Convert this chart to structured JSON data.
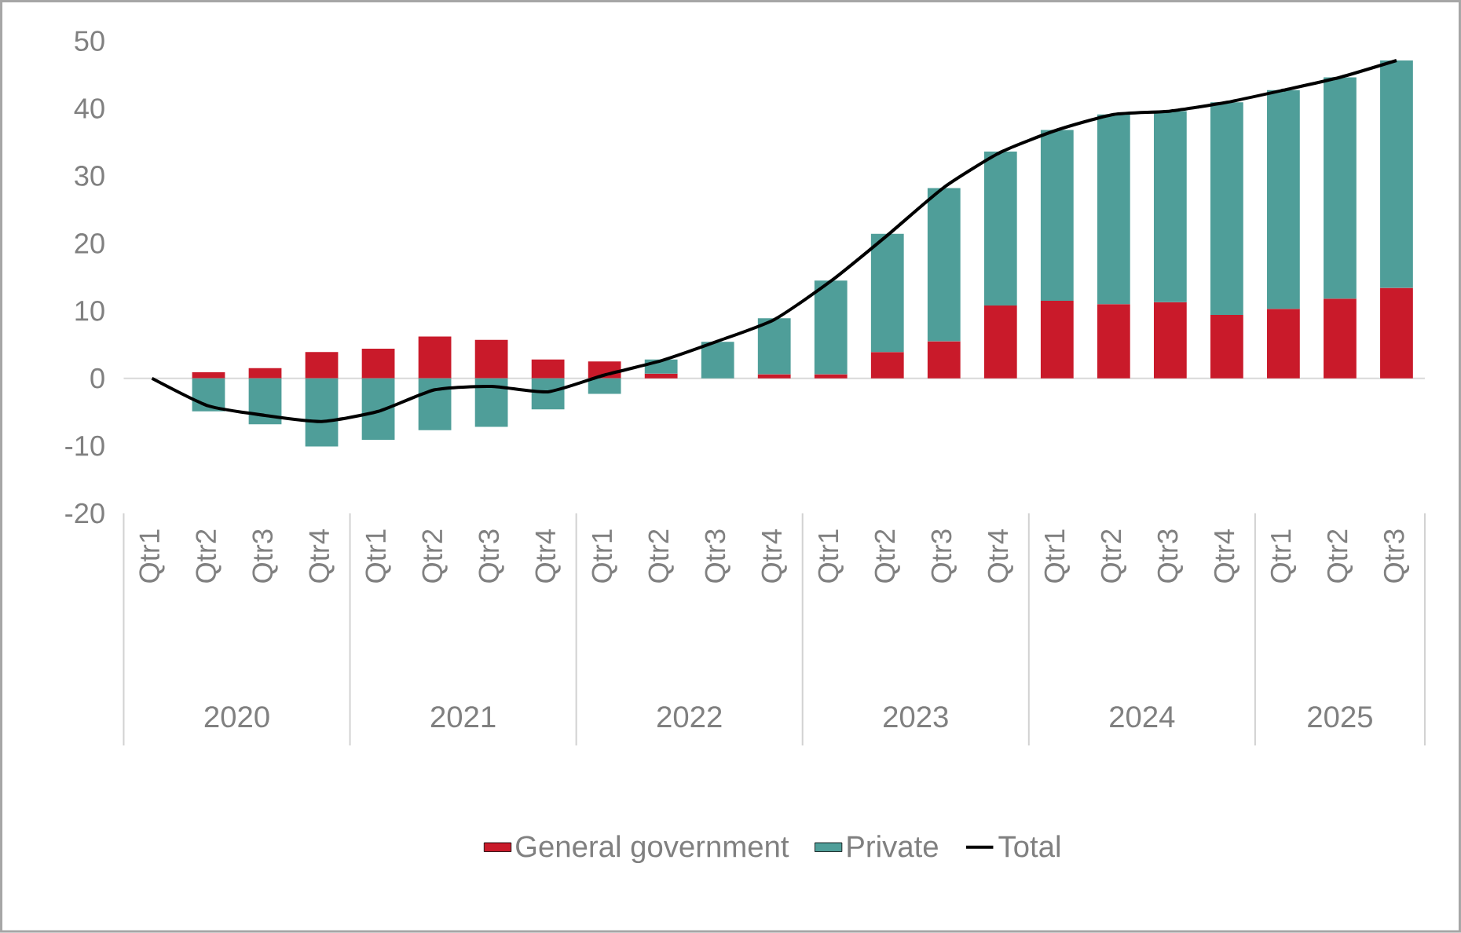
{
  "chart_data": {
    "type": "bar",
    "stacked": true,
    "legend": "bottom",
    "categories": [
      "Qtr1",
      "Qtr2",
      "Qtr3",
      "Qtr4",
      "Qtr1",
      "Qtr2",
      "Qtr3",
      "Qtr4",
      "Qtr1",
      "Qtr2",
      "Qtr3",
      "Qtr4",
      "Qtr1",
      "Qtr2",
      "Qtr3",
      "Qtr4",
      "Qtr1",
      "Qtr2",
      "Qtr3",
      "Qtr4",
      "Qtr1",
      "Qtr2",
      "Qtr3"
    ],
    "ylim": [
      -20,
      50
    ],
    "yticks": [
      -20,
      -10,
      0,
      10,
      20,
      30,
      40,
      50
    ],
    "annotations": [
      "2020",
      "2021",
      "2022",
      "2023",
      "2024",
      "2025"
    ],
    "series": [
      {
        "name": "General government",
        "color": "#c91a2a",
        "values": [
          0,
          0.9,
          1.5,
          3.9,
          4.4,
          6.2,
          5.7,
          2.8,
          2.5,
          0.7,
          0,
          0.6,
          0.6,
          3.9,
          5.5,
          10.8,
          11.5,
          11.0,
          11.3,
          9.4,
          10.3,
          11.8,
          13.4
        ]
      },
      {
        "name": "Private",
        "color": "#4f9e99",
        "values": [
          0,
          -4.9,
          -6.8,
          -10.1,
          -9.1,
          -7.7,
          -7.2,
          -4.6,
          -2.3,
          2.1,
          5.4,
          8.3,
          13.9,
          17.5,
          22.7,
          22.8,
          25.3,
          28.1,
          28.3,
          31.5,
          32.4,
          32.8,
          33.7
        ]
      },
      {
        "name": "Total",
        "type": "line",
        "color": "#000000",
        "values": [
          0,
          -4.1,
          -5.5,
          -6.4,
          -4.9,
          -1.7,
          -1.2,
          -2.0,
          0.5,
          2.6,
          5.5,
          8.7,
          14.4,
          21.2,
          28.3,
          33.5,
          36.8,
          39.1,
          39.6,
          40.9,
          42.7,
          44.6,
          47.1
        ]
      }
    ]
  }
}
